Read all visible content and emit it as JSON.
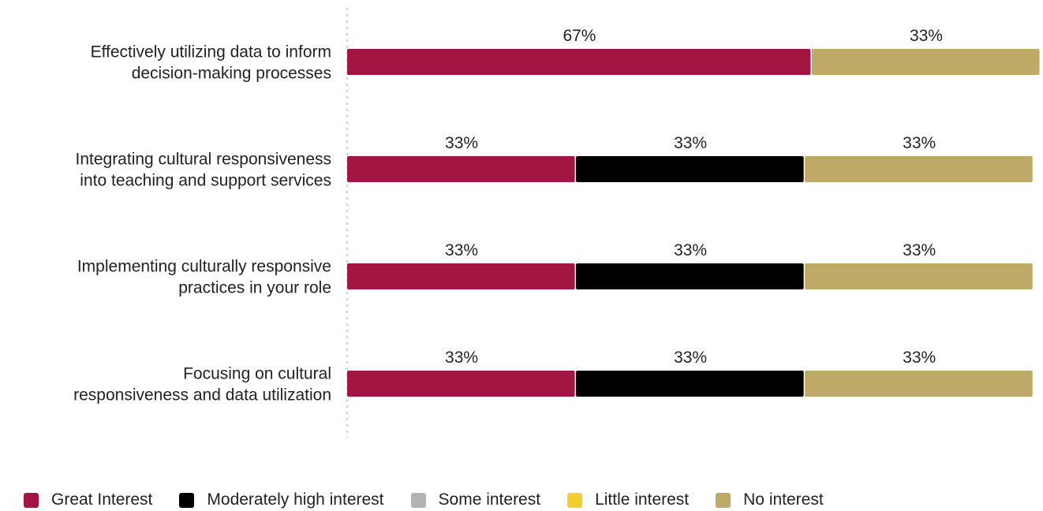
{
  "chart_data": {
    "type": "bar",
    "orientation": "horizontal",
    "stacked": true,
    "categories": [
      "Effectively utilizing data to inform decision-making processes",
      "Integrating cultural responsiveness into teaching and support services",
      "Implementing culturally responsive practices in your role",
      "Focusing on cultural responsiveness and data utilization"
    ],
    "category_lines": [
      [
        "Effectively utilizing data to inform",
        "decision-making processes"
      ],
      [
        "Integrating cultural responsiveness",
        "into teaching and support services"
      ],
      [
        "Implementing culturally responsive",
        "practices in your role"
      ],
      [
        "Focusing on cultural",
        "responsiveness and data utilization"
      ]
    ],
    "series": [
      {
        "name": "Great Interest",
        "color": "#a31641",
        "values": [
          67,
          33,
          33,
          33
        ]
      },
      {
        "name": "Moderately high interest",
        "color": "#000000",
        "values": [
          0,
          33,
          33,
          33
        ]
      },
      {
        "name": "Some interest",
        "color": "#b3b3b3",
        "values": [
          0,
          0,
          0,
          0
        ]
      },
      {
        "name": "Little interest",
        "color": "#f2cf2e",
        "values": [
          0,
          0,
          0,
          0
        ]
      },
      {
        "name": "No interest",
        "color": "#bea966",
        "values": [
          33,
          33,
          33,
          33
        ]
      }
    ],
    "value_suffix": "%",
    "xlim": [
      0,
      100
    ],
    "grid": false,
    "legend_position": "bottom-left"
  }
}
